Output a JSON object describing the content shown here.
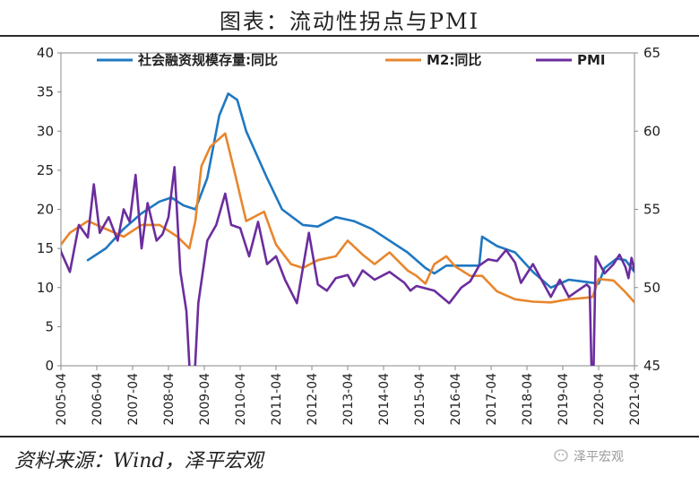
{
  "title": "图表：流动性拐点与PMI",
  "source": "资料来源：Wind，泽平宏观",
  "watermark": "泽平宏观",
  "chart_data": {
    "type": "line",
    "x_tick_labels": [
      "2005-04",
      "2006-04",
      "2007-04",
      "2008-04",
      "2009-04",
      "2010-04",
      "2011-04",
      "2012-04",
      "2013-04",
      "2014-04",
      "2015-04",
      "2016-04",
      "2017-04",
      "2018-04",
      "2019-04",
      "2020-04",
      "2021-04"
    ],
    "y_left": {
      "range": [
        0,
        40
      ],
      "ticks": [
        "0",
        "5",
        "10",
        "15",
        "20",
        "25",
        "30",
        "35",
        "40"
      ]
    },
    "y_right": {
      "range": [
        45,
        65
      ],
      "ticks": [
        "45",
        "50",
        "55",
        "60",
        "65"
      ]
    },
    "legend_position": "top",
    "series": [
      {
        "name": "社会融资规模存量:同比",
        "axis": "left",
        "color": "#1f78c1",
        "points": [
          [
            "2006-01",
            13.5
          ],
          [
            "2006-07",
            15
          ],
          [
            "2007-01",
            17.5
          ],
          [
            "2007-07",
            19.5
          ],
          [
            "2008-01",
            21
          ],
          [
            "2008-05",
            21.5
          ],
          [
            "2008-09",
            20.5
          ],
          [
            "2009-01",
            20
          ],
          [
            "2009-05",
            24
          ],
          [
            "2009-09",
            32
          ],
          [
            "2009-12",
            34.8
          ],
          [
            "2010-03",
            34
          ],
          [
            "2010-06",
            30
          ],
          [
            "2011-01",
            24
          ],
          [
            "2011-06",
            20
          ],
          [
            "2012-01",
            18
          ],
          [
            "2012-06",
            17.8
          ],
          [
            "2012-12",
            19
          ],
          [
            "2013-06",
            18.5
          ],
          [
            "2013-12",
            17.5
          ],
          [
            "2014-06",
            16
          ],
          [
            "2014-12",
            14.5
          ],
          [
            "2015-06",
            12.5
          ],
          [
            "2015-09",
            11.8
          ],
          [
            "2016-01",
            12.8
          ],
          [
            "2016-06",
            12.8
          ],
          [
            "2016-12",
            12.8
          ],
          [
            "2017-01",
            16.5
          ],
          [
            "2017-06",
            15.3
          ],
          [
            "2017-12",
            14.5
          ],
          [
            "2018-06",
            12
          ],
          [
            "2018-12",
            10
          ],
          [
            "2019-06",
            11
          ],
          [
            "2019-12",
            10.7
          ],
          [
            "2020-04",
            10.5
          ],
          [
            "2020-06",
            12.5
          ],
          [
            "2020-10",
            13.7
          ],
          [
            "2021-01",
            13.5
          ],
          [
            "2021-04",
            12
          ]
        ]
      },
      {
        "name": "M2:同比",
        "axis": "left",
        "color": "#e8862d",
        "points": [
          [
            "2005-01",
            14
          ],
          [
            "2005-07",
            17
          ],
          [
            "2006-01",
            18.5
          ],
          [
            "2006-07",
            17.5
          ],
          [
            "2007-01",
            16.5
          ],
          [
            "2007-07",
            18
          ],
          [
            "2008-01",
            18
          ],
          [
            "2008-07",
            16.5
          ],
          [
            "2008-11",
            15
          ],
          [
            "2009-01",
            18.5
          ],
          [
            "2009-03",
            25.5
          ],
          [
            "2009-06",
            28
          ],
          [
            "2009-11",
            29.7
          ],
          [
            "2010-02",
            25
          ],
          [
            "2010-06",
            18.5
          ],
          [
            "2010-12",
            19.7
          ],
          [
            "2011-04",
            15.5
          ],
          [
            "2011-09",
            13
          ],
          [
            "2012-01",
            12.5
          ],
          [
            "2012-06",
            13.5
          ],
          [
            "2012-12",
            14
          ],
          [
            "2013-04",
            16
          ],
          [
            "2013-09",
            14.2
          ],
          [
            "2014-01",
            13
          ],
          [
            "2014-06",
            14.5
          ],
          [
            "2014-12",
            12.2
          ],
          [
            "2015-03",
            11.5
          ],
          [
            "2015-06",
            10.5
          ],
          [
            "2015-09",
            13
          ],
          [
            "2016-01",
            14
          ],
          [
            "2016-04",
            12.7
          ],
          [
            "2016-09",
            11.5
          ],
          [
            "2017-01",
            11.5
          ],
          [
            "2017-06",
            9.5
          ],
          [
            "2017-12",
            8.5
          ],
          [
            "2018-06",
            8.2
          ],
          [
            "2018-12",
            8.1
          ],
          [
            "2019-06",
            8.5
          ],
          [
            "2019-12",
            8.7
          ],
          [
            "2020-02",
            8.8
          ],
          [
            "2020-04",
            11.1
          ],
          [
            "2020-09",
            10.9
          ],
          [
            "2021-01",
            9.4
          ],
          [
            "2021-04",
            8.1
          ]
        ]
      },
      {
        "name": "PMI",
        "axis": "right",
        "color": "#6b2d9e",
        "points": [
          [
            "2005-01",
            54.7
          ],
          [
            "2005-04",
            52.3
          ],
          [
            "2005-07",
            51
          ],
          [
            "2005-10",
            54
          ],
          [
            "2006-01",
            53.2
          ],
          [
            "2006-03",
            56.6
          ],
          [
            "2006-05",
            53.5
          ],
          [
            "2006-08",
            54.5
          ],
          [
            "2006-11",
            53
          ],
          [
            "2007-01",
            55
          ],
          [
            "2007-03",
            54.2
          ],
          [
            "2007-05",
            57.2
          ],
          [
            "2007-07",
            52.5
          ],
          [
            "2007-09",
            55.4
          ],
          [
            "2007-12",
            53
          ],
          [
            "2008-02",
            53.4
          ],
          [
            "2008-04",
            54.5
          ],
          [
            "2008-06",
            57.7
          ],
          [
            "2008-08",
            51
          ],
          [
            "2008-10",
            48.5
          ],
          [
            "2008-12",
            40
          ],
          [
            "2009-02",
            49
          ],
          [
            "2009-05",
            53
          ],
          [
            "2009-08",
            54
          ],
          [
            "2009-11",
            56
          ],
          [
            "2010-01",
            54
          ],
          [
            "2010-04",
            53.8
          ],
          [
            "2010-07",
            52
          ],
          [
            "2010-10",
            54.2
          ],
          [
            "2011-01",
            51.5
          ],
          [
            "2011-04",
            52
          ],
          [
            "2011-07",
            50.5
          ],
          [
            "2011-11",
            49
          ],
          [
            "2012-03",
            53.5
          ],
          [
            "2012-06",
            50.2
          ],
          [
            "2012-09",
            49.8
          ],
          [
            "2012-12",
            50.6
          ],
          [
            "2013-04",
            50.8
          ],
          [
            "2013-06",
            50.1
          ],
          [
            "2013-09",
            51.1
          ],
          [
            "2014-01",
            50.5
          ],
          [
            "2014-06",
            51
          ],
          [
            "2014-11",
            50.3
          ],
          [
            "2015-01",
            49.8
          ],
          [
            "2015-03",
            50.1
          ],
          [
            "2015-09",
            49.8
          ],
          [
            "2016-02",
            49
          ],
          [
            "2016-06",
            50
          ],
          [
            "2016-09",
            50.4
          ],
          [
            "2016-12",
            51.4
          ],
          [
            "2017-03",
            51.8
          ],
          [
            "2017-06",
            51.7
          ],
          [
            "2017-09",
            52.4
          ],
          [
            "2017-12",
            51.6
          ],
          [
            "2018-02",
            50.3
          ],
          [
            "2018-06",
            51.5
          ],
          [
            "2018-12",
            49.4
          ],
          [
            "2019-03",
            50.5
          ],
          [
            "2019-06",
            49.4
          ],
          [
            "2019-12",
            50.2
          ],
          [
            "2020-01",
            50
          ],
          [
            "2020-02",
            35.7
          ],
          [
            "2020-03",
            52
          ],
          [
            "2020-06",
            50.9
          ],
          [
            "2020-09",
            51.5
          ],
          [
            "2020-11",
            52.1
          ],
          [
            "2021-01",
            51.3
          ],
          [
            "2021-02",
            50.6
          ],
          [
            "2021-03",
            51.9
          ],
          [
            "2021-04",
            51.1
          ]
        ]
      }
    ]
  }
}
